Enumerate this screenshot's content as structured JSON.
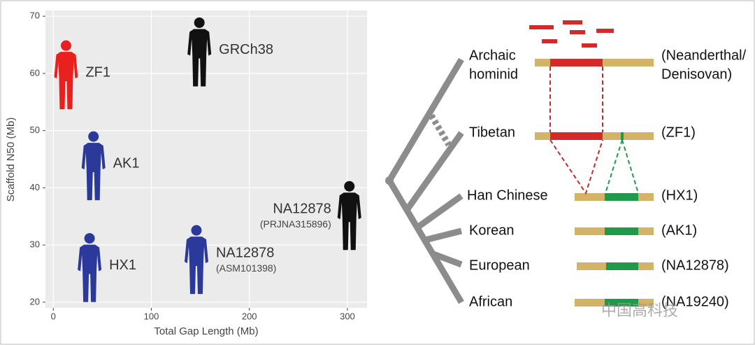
{
  "chart_data": {
    "type": "scatter",
    "x_label": "Total Gap Length (Mb)",
    "y_label": "Scaffold N50 (Mb)",
    "xlim": [
      -8,
      320
    ],
    "ylim": [
      19,
      71
    ],
    "xticks": [
      0,
      100,
      200,
      300
    ],
    "yticks": [
      20,
      30,
      40,
      50,
      60,
      70
    ],
    "grid": true,
    "points": [
      {
        "label": "ZF1",
        "x": 13,
        "y": 59.6,
        "color": "#e8201e"
      },
      {
        "label": "GRCh38",
        "x": 149,
        "y": 63.6,
        "color": "#111111"
      },
      {
        "label": "AK1",
        "x": 41,
        "y": 43.7,
        "color": "#2b3a9a"
      },
      {
        "label": "HX1",
        "x": 37,
        "y": 25.9,
        "color": "#2b3a9a"
      },
      {
        "label": "NA12878",
        "sublabel": "(ASM101398)",
        "x": 146,
        "y": 27.3,
        "color": "#2b3a9a"
      },
      {
        "label": "NA12878",
        "sublabel": "(PRJNA315896)",
        "x": 302,
        "y": 35,
        "color": "#111111"
      }
    ]
  },
  "diagram": {
    "populations": [
      {
        "name": [
          "Archaic",
          "hominid"
        ],
        "genome": [
          "(Neanderthal/",
          "Denisovan)"
        ]
      },
      {
        "name": [
          "Tibetan"
        ],
        "genome": [
          "(ZF1)"
        ]
      },
      {
        "name": [
          "Han Chinese"
        ],
        "genome": [
          "(HX1)"
        ]
      },
      {
        "name": [
          "Korean"
        ],
        "genome": [
          "(AK1)"
        ]
      },
      {
        "name": [
          "European"
        ],
        "genome": [
          "(NA12878)"
        ]
      },
      {
        "name": [
          "African"
        ],
        "genome": [
          "(NA19240)"
        ]
      }
    ],
    "watermark": "中国高科技"
  }
}
